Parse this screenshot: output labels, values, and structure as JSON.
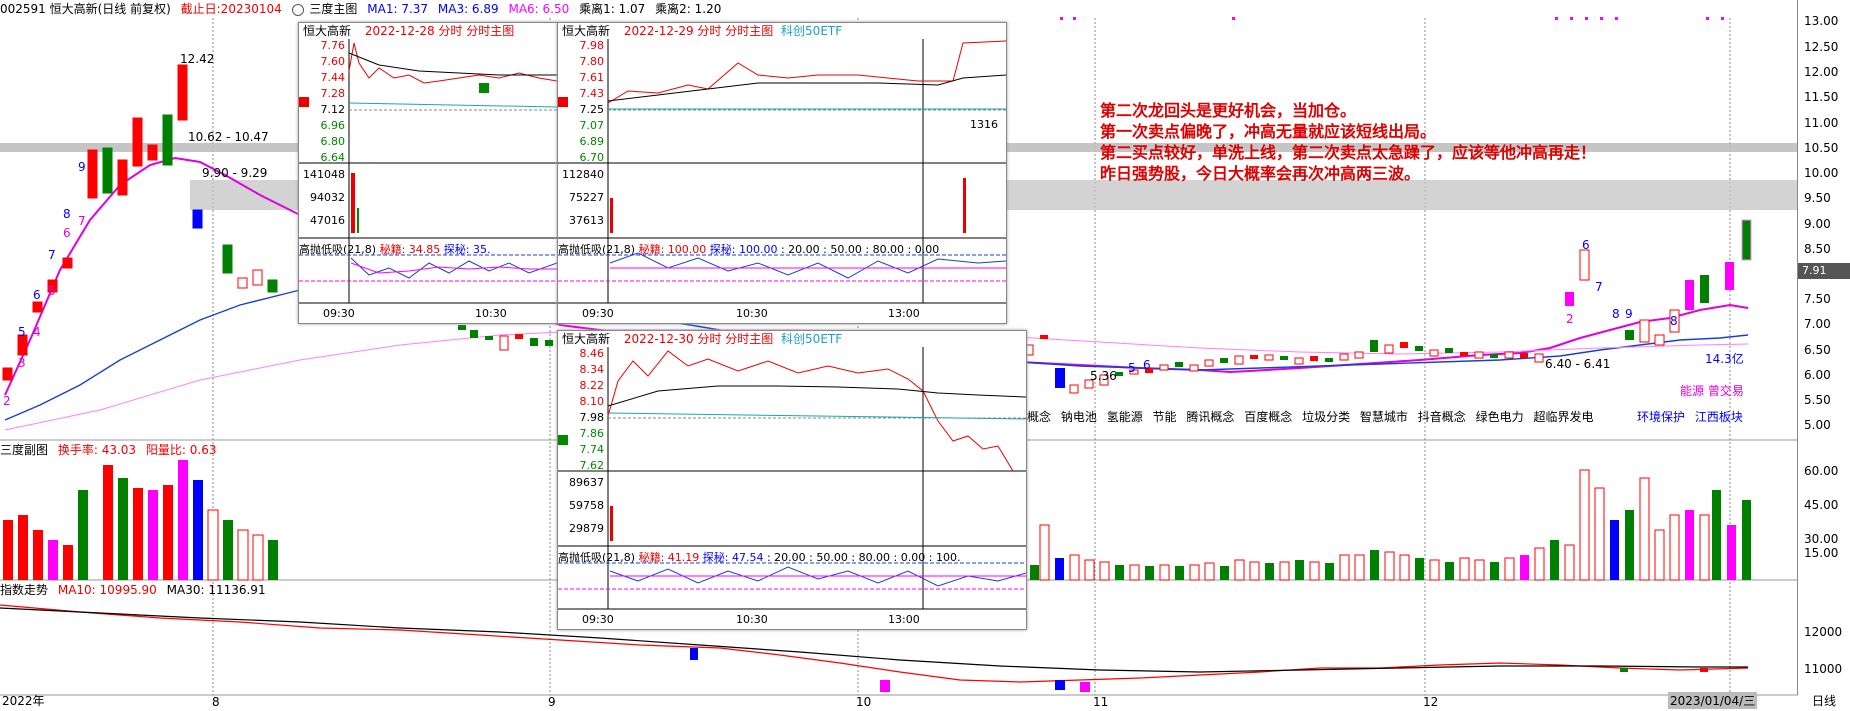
{
  "header": {
    "code_name": "002591 恒大高新(日线 前复权)",
    "cutoff": "截止日:20230104",
    "indicator": "三度主图",
    "ma1": "MA1: 7.37",
    "ma3": "MA3: 6.89",
    "ma6": "MA6: 6.50",
    "ratio1": "乘离1: 1.07",
    "ratio2": "乘离2: 1.20"
  },
  "price_axis": [
    "13.00",
    "12.50",
    "12.00",
    "11.50",
    "11.00",
    "10.50",
    "10.00",
    "9.50",
    "9.00",
    "8.50",
    "8.00",
    "7.50",
    "7.00",
    "6.50",
    "6.00",
    "5.50",
    "5.00"
  ],
  "current_price": "7.91",
  "chart_labels": {
    "high": "12.42",
    "range1": "10.62 - 10.47",
    "range2": "9.90 - 9.29",
    "low": "5.36",
    "range3": "6.40 - 6.41",
    "amount": "14.3亿",
    "tags": "能源 曾交易",
    "wave_numbers": [
      "2",
      "3",
      "5",
      "4",
      "6",
      "5",
      "7",
      "8",
      "6",
      "9",
      "7"
    ],
    "wave_numbers_right": [
      "6",
      "2",
      "7",
      "8",
      "9",
      "8",
      "5",
      "6"
    ]
  },
  "annotations": [
    "第二次龙回头是更好机会，当加仓。",
    "第一次卖点偏晚了，冲高无量就应该短线出局。",
    "第二买点较好，单洗上线，第二次卖点太急躁了，应该等他冲高再走！",
    "昨日强势股，今日大概率会再次冲高两三波。"
  ],
  "concepts": [
    "地概念",
    "钠电池",
    "氢能源",
    "节能",
    "腾讯概念",
    "百度概念",
    "垃圾分类",
    "智慧城市",
    "抖音概念",
    "绿色电力",
    "超临界发电"
  ],
  "concepts_right": [
    "环境保护",
    "江西板块"
  ],
  "sub_panel": {
    "title": "三度副图",
    "turnover": "换手率: 43.03",
    "yy_ratio": "阳量比: 0.63",
    "axis": [
      "60.00",
      "45.00",
      "30.00",
      "15.00"
    ]
  },
  "index_panel": {
    "title": "指数走势",
    "ma10": "MA10: 10995.90",
    "ma30": "MA30: 11136.91",
    "axis": [
      "12000",
      "11000"
    ]
  },
  "x_axis": [
    "2022年",
    "8",
    "9",
    "10",
    "11",
    "12",
    "2023/01/04/三",
    "日线"
  ],
  "popups": [
    {
      "name": "恒大高新",
      "date": "2022-12-28 分时 分时主图",
      "etf": "",
      "price_labels": [
        "7.76",
        "7.60",
        "7.44",
        "7.28",
        "7.12",
        "6.96",
        "6.80",
        "6.64"
      ],
      "vol_labels": [
        "141048",
        "94032",
        "47016"
      ],
      "ind": "高抛低吸(21,8)",
      "ind_v1": "秘籍: 34.85",
      "ind_v2": "探秘: 35.",
      "ind_rest": "",
      "times": [
        "09:30",
        "10:30"
      ]
    },
    {
      "name": "恒大高新",
      "date": "2022-12-29 分时 分时主图",
      "etf": "科创50ETF",
      "price_labels": [
        "7.98",
        "7.80",
        "7.61",
        "7.43",
        "7.25",
        "7.07",
        "6.89",
        "6.70"
      ],
      "vol_labels": [
        "112840",
        "75227",
        "37613"
      ],
      "ind": "高抛低吸(21,8)",
      "ind_v1": "秘籍: 100.00",
      "ind_v2": "探秘: 100.00",
      "ind_rest": ": 20.00 : 50.00 : 80.00 : 0.00",
      "times": [
        "09:30",
        "10:30",
        "13:00"
      ],
      "right_label": "1316"
    },
    {
      "name": "恒大高新",
      "date": "2022-12-30 分时 分时主图",
      "etf": "科创50ETF",
      "price_labels": [
        "8.46",
        "8.34",
        "8.22",
        "8.10",
        "7.98",
        "7.86",
        "7.74",
        "7.62"
      ],
      "vol_labels": [
        "89637",
        "59758",
        "29879"
      ],
      "ind": "高抛低吸(21,8)",
      "ind_v1": "秘籍: 41.19",
      "ind_v2": "探秘: 47.54",
      "ind_rest": ": 20.00 : 50.00 : 80.00 : 0.00 : 100.",
      "times": [
        "09:30",
        "10:30",
        "13:00"
      ]
    }
  ],
  "colors": {
    "up": "#ff0000",
    "down": "#008000",
    "blue": "#0000ff",
    "magenta": "#ff00ff",
    "pink": "#ff8080",
    "annot": "#e00000"
  }
}
